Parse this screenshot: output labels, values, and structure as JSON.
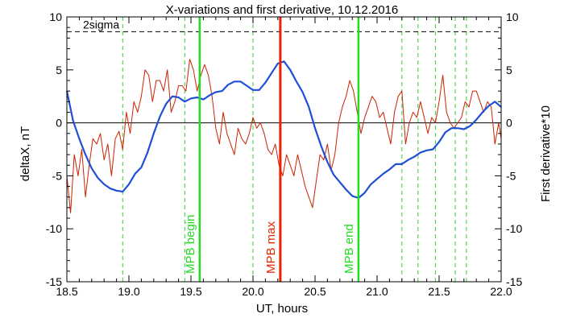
{
  "chart_data": {
    "type": "line",
    "title": "X-variations and first derivative, 10.12.2016",
    "xlabel": "UT, hours",
    "ylabel_left": "deltaX, nT",
    "ylabel_right": "First derivative*10",
    "xlim": [
      18.5,
      22.0
    ],
    "ylim": [
      -15,
      10
    ],
    "x_ticks": [
      "18.5",
      "19.0",
      "19.5",
      "20.0",
      "20.5",
      "21.0",
      "21.5",
      "22.0"
    ],
    "y_ticks_left": [
      "10",
      "5",
      "0",
      "-5",
      "-10",
      "-15"
    ],
    "y_ticks_right": [
      "10",
      "5",
      "0",
      "-5",
      "-10",
      "-15"
    ],
    "threshold": {
      "label": "2sigma",
      "value": 8.6
    },
    "zero_line": 0,
    "colors": {
      "deltaX": "#1f4fd8",
      "derivative": "#cc2200",
      "mpb_begin_end": "#22dd22",
      "mpb_max": "#ee2200",
      "dashed": "#33cc33",
      "left_axis_label": "#1f4fd8",
      "right_axis_label": "#cc2200"
    },
    "vlines": [
      {
        "x": 19.57,
        "label": "MPB begin",
        "kind": "begin"
      },
      {
        "x": 20.22,
        "label": "MPB max",
        "kind": "max"
      },
      {
        "x": 20.85,
        "label": "MPB end",
        "kind": "end"
      }
    ],
    "dashed_vlines": [
      18.95,
      19.45,
      20.0,
      21.2,
      21.33,
      21.47,
      21.63,
      21.72
    ],
    "series": [
      {
        "key": "deltaX",
        "x": [
          18.5,
          18.55,
          18.6,
          18.65,
          18.7,
          18.75,
          18.8,
          18.85,
          18.9,
          18.95,
          19.0,
          19.05,
          19.1,
          19.15,
          19.2,
          19.25,
          19.3,
          19.35,
          19.4,
          19.45,
          19.5,
          19.55,
          19.6,
          19.65,
          19.7,
          19.75,
          19.8,
          19.85,
          19.9,
          19.95,
          20.0,
          20.05,
          20.1,
          20.15,
          20.2,
          20.25,
          20.3,
          20.35,
          20.4,
          20.45,
          20.5,
          20.55,
          20.6,
          20.65,
          20.7,
          20.75,
          20.8,
          20.85,
          20.9,
          20.95,
          21.0,
          21.05,
          21.1,
          21.15,
          21.2,
          21.25,
          21.3,
          21.35,
          21.4,
          21.45,
          21.5,
          21.55,
          21.6,
          21.65,
          21.7,
          21.75,
          21.8,
          21.85,
          21.9,
          21.95,
          22.0
        ],
        "values": [
          3.0,
          0.2,
          -1.5,
          -3.0,
          -4.3,
          -5.2,
          -5.8,
          -6.2,
          -6.4,
          -6.5,
          -5.8,
          -4.8,
          -4.2,
          -2.8,
          -1.0,
          0.6,
          1.8,
          2.5,
          2.4,
          2.0,
          2.3,
          2.4,
          2.2,
          2.6,
          2.9,
          3.0,
          3.6,
          3.9,
          3.9,
          3.5,
          3.1,
          3.1,
          3.8,
          4.7,
          5.6,
          5.8,
          5.0,
          3.9,
          2.9,
          1.5,
          -0.5,
          -2.2,
          -3.7,
          -4.9,
          -5.6,
          -6.3,
          -6.9,
          -7.1,
          -6.6,
          -5.8,
          -5.3,
          -4.8,
          -4.4,
          -3.9,
          -3.9,
          -3.5,
          -3.2,
          -2.8,
          -2.6,
          -2.5,
          -1.8,
          -0.9,
          -0.5,
          -0.5,
          -0.6,
          -0.3,
          0.3,
          1.0,
          1.6,
          2.0,
          1.5
        ]
      },
      {
        "key": "derivative",
        "x": [
          18.5,
          18.53,
          18.56,
          18.59,
          18.62,
          18.65,
          18.68,
          18.71,
          18.74,
          18.77,
          18.8,
          18.83,
          18.86,
          18.89,
          18.92,
          18.95,
          18.98,
          19.01,
          19.04,
          19.07,
          19.1,
          19.13,
          19.16,
          19.19,
          19.22,
          19.25,
          19.28,
          19.31,
          19.34,
          19.37,
          19.4,
          19.43,
          19.46,
          19.49,
          19.52,
          19.55,
          19.58,
          19.61,
          19.64,
          19.67,
          19.7,
          19.73,
          19.76,
          19.79,
          19.82,
          19.85,
          19.88,
          19.91,
          19.94,
          19.97,
          20.0,
          20.03,
          20.06,
          20.09,
          20.12,
          20.15,
          20.18,
          20.21,
          20.24,
          20.27,
          20.3,
          20.33,
          20.36,
          20.39,
          20.42,
          20.45,
          20.48,
          20.51,
          20.54,
          20.57,
          20.6,
          20.63,
          20.66,
          20.69,
          20.72,
          20.75,
          20.78,
          20.81,
          20.84,
          20.87,
          20.9,
          20.93,
          20.96,
          20.99,
          21.02,
          21.05,
          21.08,
          21.11,
          21.14,
          21.17,
          21.2,
          21.23,
          21.26,
          21.29,
          21.32,
          21.35,
          21.38,
          21.41,
          21.44,
          21.47,
          21.5,
          21.53,
          21.56,
          21.59,
          21.62,
          21.65,
          21.68,
          21.71,
          21.74,
          21.77,
          21.8,
          21.83,
          21.86,
          21.89,
          21.92,
          21.95,
          21.98,
          22.0
        ],
        "values": [
          -5.0,
          -8.5,
          -3.0,
          -5.0,
          -2.5,
          -7.0,
          -4.0,
          -1.5,
          -2.0,
          -1.0,
          -3.5,
          -2.0,
          -5.0,
          -1.5,
          -0.8,
          -2.5,
          1.0,
          -1.0,
          2.0,
          1.0,
          2.5,
          5.0,
          4.5,
          2.0,
          4.0,
          4.0,
          3.0,
          5.0,
          1.0,
          2.0,
          3.5,
          3.5,
          3.0,
          6.0,
          5.0,
          3.0,
          4.5,
          5.5,
          4.5,
          2.5,
          -0.5,
          -2.0,
          1.0,
          -1.0,
          -2.0,
          -3.0,
          -0.5,
          -1.5,
          -2.0,
          -1.0,
          0.5,
          -0.5,
          0.0,
          -1.0,
          -2.5,
          -3.0,
          -2.0,
          -4.0,
          -5.0,
          -3.0,
          -4.0,
          -5.0,
          -3.0,
          -4.5,
          -6.0,
          -7.0,
          -8.0,
          -5.5,
          -3.0,
          -3.5,
          -2.0,
          -4.5,
          -3.0,
          0.0,
          1.5,
          2.5,
          4.0,
          3.0,
          1.0,
          -1.0,
          0.5,
          1.5,
          2.5,
          2.0,
          0.5,
          1.0,
          -0.5,
          -2.0,
          1.0,
          2.5,
          3.0,
          -2.0,
          0.0,
          1.0,
          0.5,
          2.0,
          0.5,
          -1.0,
          0.5,
          0.0,
          2.0,
          4.5,
          1.0,
          0.0,
          -0.5,
          0.0,
          0.5,
          2.0,
          1.5,
          3.0,
          3.0,
          2.0,
          1.0,
          2.0,
          1.5,
          -2.0,
          0.0,
          -1.5
        ]
      }
    ]
  }
}
